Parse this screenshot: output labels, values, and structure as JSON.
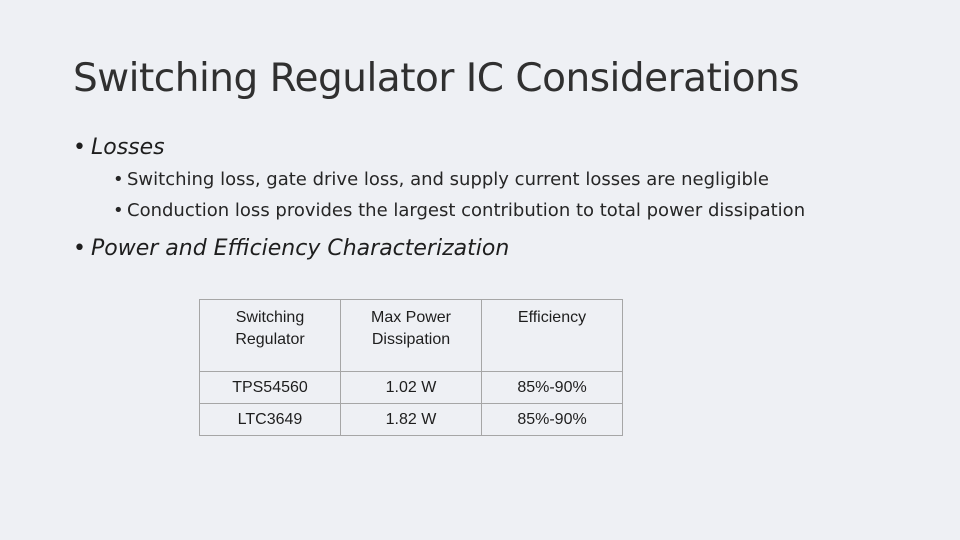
{
  "slide": {
    "title": "Switching Regulator IC Considerations",
    "bullets": [
      {
        "text": "Losses",
        "sub": [
          "Switching loss, gate drive loss, and supply current losses are negligible",
          "Conduction loss provides the largest contribution to total power dissipation"
        ]
      },
      {
        "text": "Power and Efficiency Characterization",
        "sub": []
      }
    ],
    "bullet_glyph": "•",
    "table": {
      "headers": [
        [
          "Switching",
          "Regulator"
        ],
        [
          "Max Power",
          "Dissipation"
        ],
        [
          "Efficiency"
        ]
      ],
      "rows": [
        [
          "TPS54560",
          "1.02 W",
          "85%-90%"
        ],
        [
          "LTC3649",
          "1.82 W",
          "85%-90%"
        ]
      ]
    },
    "colors": {
      "background": "#eef0f4",
      "text": "#262626",
      "table_border": "#a6a6a6"
    }
  }
}
